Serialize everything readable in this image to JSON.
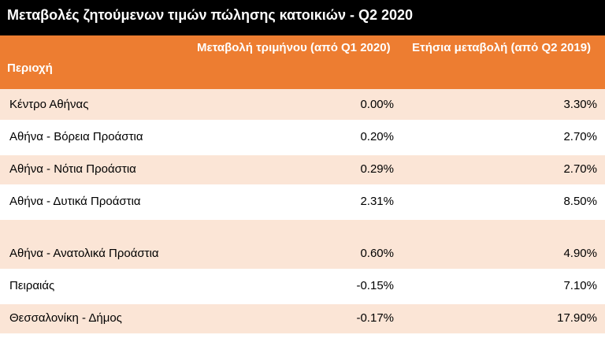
{
  "title": "Μεταβολές ζητούμενων τιμών πώλησης κατοικιών - Q2 2020",
  "table": {
    "headers": {
      "region": "Περιοχή",
      "quarterly": "Μεταβολή τριμήνου (από Q1 2020)",
      "annual": "Ετήσια μεταβολή (από Q2 2019)"
    },
    "rows": [
      {
        "region": "Κέντρο Αθήνας",
        "quarterly": "0.00%",
        "annual": "3.30%"
      },
      {
        "region": "Αθήνα - Βόρεια Προάστια",
        "quarterly": "0.20%",
        "annual": "2.70%"
      },
      {
        "region": "Αθήνα - Νότια Προάστια",
        "quarterly": "0.29%",
        "annual": "2.70%"
      },
      {
        "region": "Αθήνα - Δυτικά Προάστια",
        "quarterly": "2.31%",
        "annual": "8.50%"
      },
      {
        "region": "Αθήνα - Ανατολικά Προάστια",
        "quarterly": "0.60%",
        "annual": "4.90%"
      },
      {
        "region": "Πειραιάς",
        "quarterly": "-0.15%",
        "annual": "7.10%"
      },
      {
        "region": "Θεσσαλονίκη - Δήμος",
        "quarterly": "-0.17%",
        "annual": "17.90%"
      }
    ]
  },
  "colors": {
    "title_background": "#000000",
    "header_background": "#ed7d31",
    "band_background": "#fbe5d6"
  }
}
